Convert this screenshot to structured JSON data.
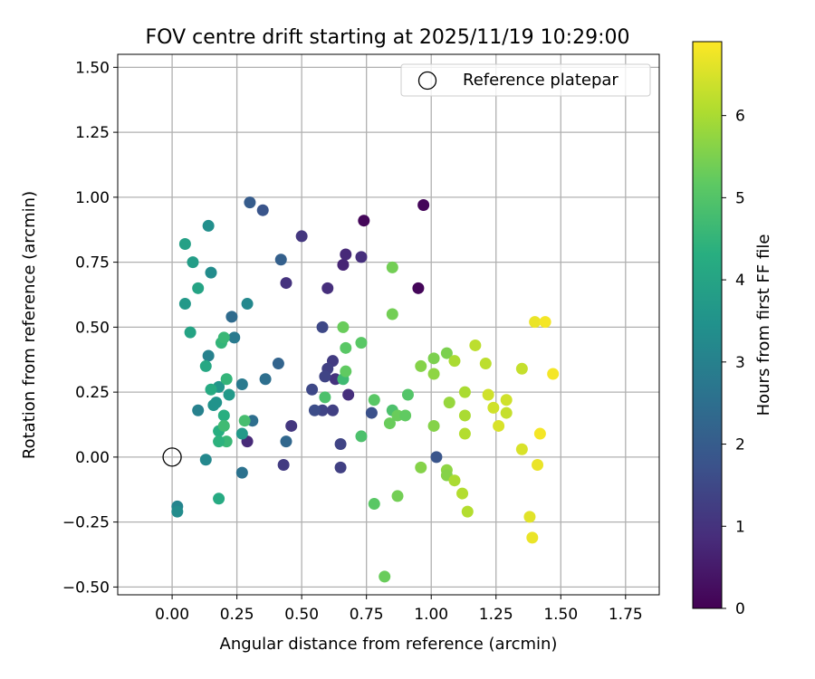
{
  "chart_data": {
    "type": "scatter",
    "title": "FOV centre drift starting at 2025/11/19 10:29:00",
    "xlabel": "Angular distance from reference (arcmin)",
    "ylabel": "Rotation from reference (arcmin)",
    "xlim": [
      -0.21,
      1.88
    ],
    "ylim": [
      -0.53,
      1.55
    ],
    "xticks": [
      0.0,
      0.25,
      0.5,
      0.75,
      1.0,
      1.25,
      1.5,
      1.75
    ],
    "xtick_labels": [
      "0.00",
      "0.25",
      "0.50",
      "0.75",
      "1.00",
      "1.25",
      "1.50",
      "1.75"
    ],
    "yticks": [
      -0.5,
      -0.25,
      0.0,
      0.25,
      0.5,
      0.75,
      1.0,
      1.25,
      1.5
    ],
    "ytick_labels": [
      "−0.50",
      "−0.25",
      "0.00",
      "0.25",
      "0.50",
      "0.75",
      "1.00",
      "1.25",
      "1.50"
    ],
    "grid": true,
    "legend": {
      "position": "top-right",
      "entries": [
        "Reference platepar"
      ]
    },
    "reference": {
      "x": 0.0,
      "y": 0.0,
      "label": "Reference platepar"
    },
    "colorbar": {
      "label": "Hours from first FF file",
      "min": 0,
      "max": 6.9,
      "ticks": [
        0,
        1,
        2,
        3,
        4,
        5,
        6
      ],
      "tick_labels": [
        "0",
        "1",
        "2",
        "3",
        "4",
        "5",
        "6"
      ],
      "colormap": "viridis"
    },
    "columns": [
      "x",
      "y",
      "hours"
    ],
    "points": [
      [
        0.74,
        0.91,
        0.1
      ],
      [
        0.97,
        0.97,
        0.1
      ],
      [
        0.95,
        0.65,
        0.1
      ],
      [
        0.66,
        0.74,
        0.7
      ],
      [
        0.67,
        0.78,
        0.8
      ],
      [
        0.73,
        0.77,
        0.9
      ],
      [
        0.6,
        0.65,
        0.9
      ],
      [
        0.44,
        0.67,
        1.0
      ],
      [
        0.5,
        0.85,
        1.1
      ],
      [
        0.63,
        0.3,
        1.0
      ],
      [
        0.68,
        0.24,
        0.9
      ],
      [
        0.29,
        0.06,
        0.8
      ],
      [
        0.46,
        0.12,
        1.1
      ],
      [
        0.43,
        -0.03,
        1.2
      ],
      [
        0.65,
        -0.04,
        1.3
      ],
      [
        0.65,
        0.05,
        1.4
      ],
      [
        0.58,
        0.18,
        1.4
      ],
      [
        0.62,
        0.37,
        1.2
      ],
      [
        0.6,
        0.34,
        1.3
      ],
      [
        0.59,
        0.31,
        1.4
      ],
      [
        0.58,
        0.5,
        1.5
      ],
      [
        0.54,
        0.26,
        1.5
      ],
      [
        0.55,
        0.18,
        1.6
      ],
      [
        0.62,
        0.18,
        1.3
      ],
      [
        0.77,
        0.17,
        1.7
      ],
      [
        1.02,
        0.0,
        1.8
      ],
      [
        0.35,
        0.95,
        1.8
      ],
      [
        0.3,
        0.98,
        2.0
      ],
      [
        0.42,
        0.76,
        2.1
      ],
      [
        0.41,
        0.36,
        2.2
      ],
      [
        0.44,
        0.06,
        2.3
      ],
      [
        0.23,
        0.54,
        2.4
      ],
      [
        0.36,
        0.3,
        2.5
      ],
      [
        0.31,
        0.14,
        2.5
      ],
      [
        0.27,
        -0.06,
        2.6
      ],
      [
        0.24,
        0.46,
        2.8
      ],
      [
        0.27,
        0.28,
        2.8
      ],
      [
        0.14,
        0.39,
        3.0
      ],
      [
        0.1,
        0.18,
        3.0
      ],
      [
        0.13,
        -0.01,
        3.2
      ],
      [
        0.29,
        0.59,
        3.2
      ],
      [
        0.15,
        0.71,
        3.3
      ],
      [
        0.14,
        0.89,
        3.4
      ],
      [
        0.16,
        0.2,
        3.5
      ],
      [
        0.17,
        0.21,
        3.5
      ],
      [
        0.18,
        0.27,
        3.6
      ],
      [
        0.22,
        0.24,
        3.7
      ],
      [
        0.27,
        0.09,
        3.7
      ],
      [
        0.05,
        0.59,
        3.7
      ],
      [
        0.08,
        0.75,
        3.8
      ],
      [
        0.05,
        0.82,
        3.9
      ],
      [
        0.02,
        -0.19,
        3.1
      ],
      [
        0.02,
        -0.21,
        3.3
      ],
      [
        0.07,
        0.48,
        4.0
      ],
      [
        0.1,
        0.65,
        4.0
      ],
      [
        0.13,
        0.35,
        4.1
      ],
      [
        0.15,
        0.26,
        4.2
      ],
      [
        0.18,
        0.1,
        4.3
      ],
      [
        0.2,
        0.16,
        4.3
      ],
      [
        0.21,
        0.3,
        4.5
      ],
      [
        0.19,
        0.44,
        4.5
      ],
      [
        0.2,
        0.46,
        4.6
      ],
      [
        0.21,
        0.06,
        4.6
      ],
      [
        0.18,
        0.06,
        4.4
      ],
      [
        0.18,
        -0.16,
        4.2
      ],
      [
        0.2,
        0.12,
        4.7
      ],
      [
        0.28,
        0.14,
        4.8
      ],
      [
        0.66,
        0.3,
        4.7
      ],
      [
        0.59,
        0.23,
        4.9
      ],
      [
        0.73,
        0.08,
        4.9
      ],
      [
        0.85,
        0.18,
        4.9
      ],
      [
        0.91,
        0.24,
        5.0
      ],
      [
        0.78,
        0.22,
        5.1
      ],
      [
        0.66,
        0.5,
        5.3
      ],
      [
        0.67,
        0.42,
        5.1
      ],
      [
        0.67,
        0.33,
        5.2
      ],
      [
        0.73,
        0.44,
        5.1
      ],
      [
        0.85,
        0.55,
        5.4
      ],
      [
        0.85,
        0.73,
        5.4
      ],
      [
        0.87,
        0.16,
        5.3
      ],
      [
        0.9,
        0.16,
        5.2
      ],
      [
        0.84,
        0.13,
        5.3
      ],
      [
        0.78,
        -0.18,
        5.1
      ],
      [
        0.87,
        -0.15,
        5.4
      ],
      [
        0.82,
        -0.46,
        5.3
      ],
      [
        0.96,
        -0.04,
        5.6
      ],
      [
        0.96,
        0.35,
        5.6
      ],
      [
        1.01,
        0.38,
        5.5
      ],
      [
        1.01,
        0.32,
        5.7
      ],
      [
        1.01,
        0.12,
        5.6
      ],
      [
        1.06,
        0.4,
        5.5
      ],
      [
        1.07,
        0.21,
        5.8
      ],
      [
        1.06,
        -0.05,
        5.7
      ],
      [
        1.06,
        -0.07,
        5.6
      ],
      [
        1.09,
        -0.09,
        6.0
      ],
      [
        1.09,
        0.37,
        6.0
      ],
      [
        1.13,
        0.25,
        6.0
      ],
      [
        1.13,
        0.16,
        6.0
      ],
      [
        1.13,
        0.09,
        6.1
      ],
      [
        1.12,
        -0.14,
        6.1
      ],
      [
        1.14,
        -0.21,
        6.1
      ],
      [
        1.17,
        0.43,
        6.2
      ],
      [
        1.21,
        0.36,
        6.2
      ],
      [
        1.22,
        0.24,
        6.4
      ],
      [
        1.24,
        0.19,
        6.4
      ],
      [
        1.26,
        0.12,
        6.5
      ],
      [
        1.29,
        0.22,
        6.4
      ],
      [
        1.29,
        0.17,
        6.3
      ],
      [
        1.35,
        0.34,
        6.3
      ],
      [
        1.35,
        0.03,
        6.5
      ],
      [
        1.38,
        -0.23,
        6.6
      ],
      [
        1.39,
        -0.31,
        6.7
      ],
      [
        1.4,
        0.52,
        6.7
      ],
      [
        1.41,
        -0.03,
        6.7
      ],
      [
        1.42,
        0.09,
        6.8
      ],
      [
        1.44,
        0.52,
        6.8
      ],
      [
        1.47,
        0.32,
        6.8
      ]
    ]
  }
}
